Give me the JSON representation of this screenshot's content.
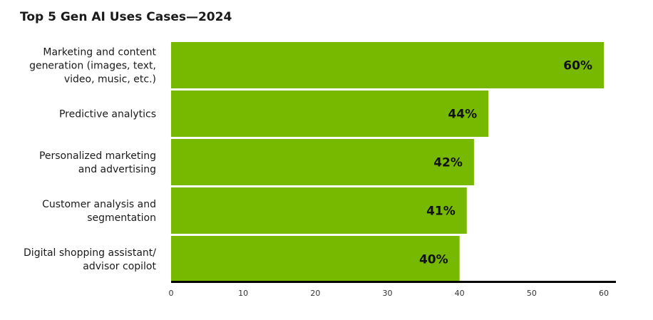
{
  "chart_data": {
    "type": "bar",
    "orientation": "horizontal",
    "title": "Top 5 Gen AI Uses Cases—2024",
    "xlabel": "",
    "ylabel": "",
    "categories": [
      "Marketing and content generation (images, text, video, music, etc.)",
      "Predictive analytics",
      "Personalized marketing and advertising",
      "Customer analysis and segmentation",
      "Digital shopping assistant/ advisor copilot"
    ],
    "category_lines": [
      [
        "Marketing and content",
        "generation (images, text,",
        "video, music, etc.)"
      ],
      [
        "Predictive analytics"
      ],
      [
        "Personalized marketing",
        "and advertising"
      ],
      [
        "Customer analysis and",
        "segmentation"
      ],
      [
        "Digital shopping assistant/",
        "advisor copilot"
      ]
    ],
    "values": [
      60,
      44,
      42,
      41,
      40
    ],
    "data_labels": [
      "60%",
      "44%",
      "42%",
      "41%",
      "40%"
    ],
    "xlim": [
      0,
      60
    ],
    "xticks": [
      0,
      10,
      20,
      30,
      40,
      50,
      60
    ],
    "grid": false,
    "legend": "none",
    "bar_color": "#76b900",
    "axis_color": "#000000"
  }
}
